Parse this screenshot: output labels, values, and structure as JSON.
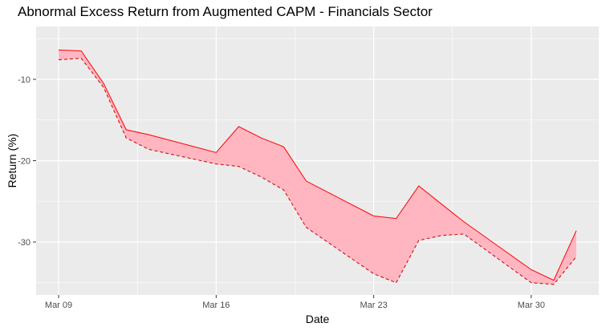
{
  "chart_data": {
    "type": "area",
    "title": "Abnormal Excess Return from Augmented CAPM - Financials Sector",
    "xlabel": "Date",
    "ylabel": "Return (%)",
    "x": [
      "2020-03-09",
      "2020-03-10",
      "2020-03-11",
      "2020-03-12",
      "2020-03-13",
      "2020-03-16",
      "2020-03-17",
      "2020-03-18",
      "2020-03-19",
      "2020-03-20",
      "2020-03-23",
      "2020-03-24",
      "2020-03-25",
      "2020-03-26",
      "2020-03-27",
      "2020-03-30",
      "2020-03-31",
      "2020-04-01"
    ],
    "xlim": [
      "2020-03-08",
      "2020-04-02"
    ],
    "ylim": [
      -36.5,
      -3.5
    ],
    "x_ticks": [
      {
        "date": "2020-03-09",
        "label": "Mar 09"
      },
      {
        "date": "2020-03-16",
        "label": "Mar 16"
      },
      {
        "date": "2020-03-23",
        "label": "Mar 23"
      },
      {
        "date": "2020-03-30",
        "label": "Mar 30"
      }
    ],
    "y_ticks": [
      {
        "value": -10,
        "label": "-10"
      },
      {
        "value": -20,
        "label": "-20"
      },
      {
        "value": -30,
        "label": "-30"
      }
    ],
    "series": [
      {
        "values": [
          -6.4,
          -6.5,
          -10.5,
          -16.2,
          -16.8,
          -19.0,
          -15.8,
          -17.2,
          -18.3,
          -22.5,
          -26.8,
          -27.1,
          -23.1,
          -25.3,
          -27.5,
          -33.4,
          -34.7,
          -28.6
        ],
        "style": "solid",
        "color": "#ff0000"
      },
      {
        "values": [
          -7.6,
          -7.4,
          -11.0,
          -17.2,
          -18.6,
          -20.4,
          -20.7,
          -22.0,
          -23.6,
          -28.2,
          -33.9,
          -35.0,
          -29.8,
          -29.2,
          -29.0,
          -35.0,
          -35.2,
          -31.8
        ],
        "style": "dashed",
        "color": "#cc0000"
      }
    ],
    "fill_color": "#ffb6c1",
    "panel_color": "#ebebeb",
    "grid": true,
    "legend": "none"
  }
}
